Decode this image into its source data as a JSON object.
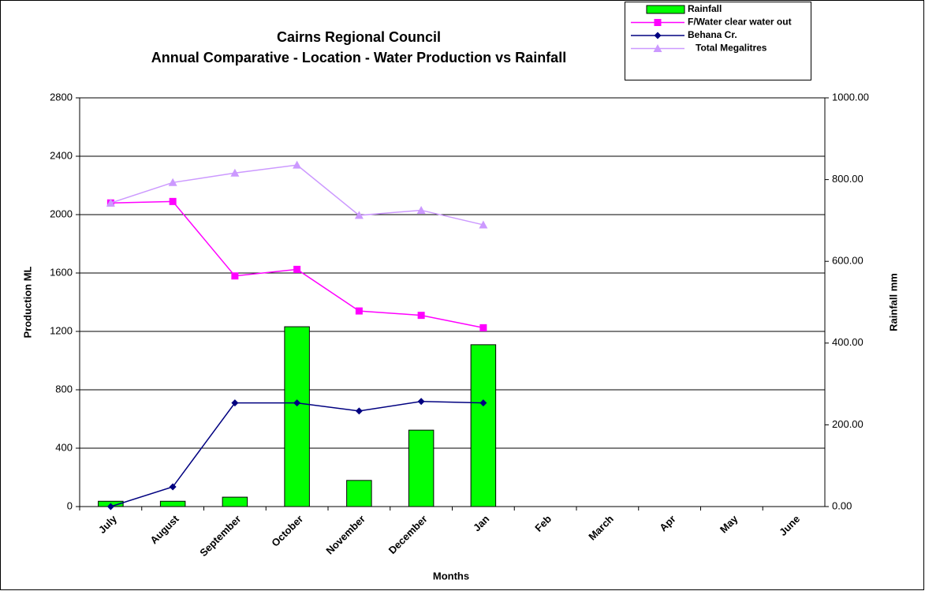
{
  "chart_data": {
    "type": "combo",
    "title": [
      "Cairns Regional Council",
      "Annual Comparative - Location - Water Production vs Rainfall"
    ],
    "x_label": "Months",
    "y_label": "Production ML",
    "y2_label": "Rainfall mm",
    "categories": [
      "July",
      "August",
      "September",
      "October",
      "November",
      "December",
      "Jan",
      "Feb",
      "March",
      "Apr",
      "May",
      "June"
    ],
    "ylim": [
      0,
      2800
    ],
    "yticks": [
      0,
      400,
      800,
      1200,
      1600,
      2000,
      2400,
      2800
    ],
    "y2lim": [
      0,
      1000
    ],
    "y2ticks": [
      {
        "value": 0,
        "label": "0.00"
      },
      {
        "value": 200,
        "label": "200.00"
      },
      {
        "value": 400,
        "label": "400.00"
      },
      {
        "value": 600,
        "label": "600.00"
      },
      {
        "value": 800,
        "label": "800.00"
      },
      {
        "value": 1000,
        "label": "1000.00"
      }
    ],
    "grid": true,
    "legend": "top-right",
    "series": [
      {
        "name": "Rainfall",
        "type": "bar",
        "axis": "y2",
        "color": "#00ff00",
        "values": [
          13,
          13,
          23,
          440,
          64,
          187,
          396,
          null,
          null,
          null,
          null,
          null
        ]
      },
      {
        "name": "F/Water clear water out",
        "type": "line",
        "marker": "square",
        "color": "#ff00ff",
        "values": [
          2080,
          2090,
          1580,
          1625,
          1340,
          1310,
          1225,
          null,
          null,
          null,
          null,
          null
        ]
      },
      {
        "name": "Behana Cr.",
        "type": "line",
        "marker": "diamond",
        "color": "#000080",
        "values": [
          0,
          135,
          710,
          710,
          655,
          720,
          710,
          null,
          null,
          null,
          null,
          null
        ]
      },
      {
        "name": "Total Megalitres",
        "type": "line",
        "marker": "triangle",
        "color": "#cc99ff",
        "values": [
          2080,
          2220,
          2285,
          2340,
          1995,
          2030,
          1930,
          null,
          null,
          null,
          null,
          null
        ]
      }
    ]
  }
}
